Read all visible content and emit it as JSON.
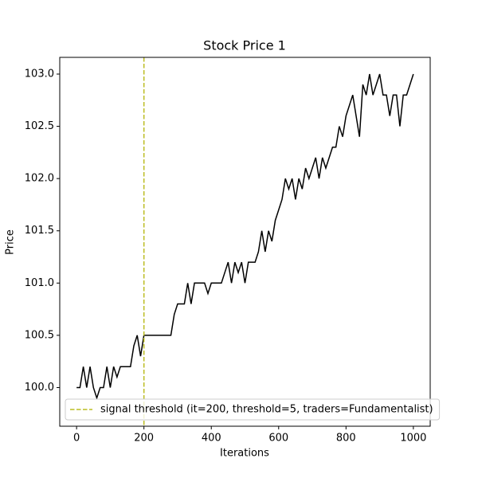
{
  "chart_data": {
    "type": "line",
    "title": "Stock Price 1",
    "x_label": "Iterations",
    "y_label": "Price",
    "x": [
      0,
      10,
      20,
      30,
      40,
      50,
      60,
      70,
      80,
      90,
      100,
      110,
      120,
      130,
      140,
      150,
      160,
      170,
      180,
      190,
      200,
      210,
      220,
      230,
      240,
      250,
      260,
      270,
      280,
      290,
      300,
      310,
      320,
      330,
      340,
      350,
      360,
      370,
      380,
      390,
      400,
      410,
      420,
      430,
      440,
      450,
      460,
      470,
      480,
      490,
      500,
      510,
      520,
      530,
      540,
      550,
      560,
      570,
      580,
      590,
      600,
      610,
      620,
      630,
      640,
      650,
      660,
      670,
      680,
      690,
      700,
      710,
      720,
      730,
      740,
      750,
      760,
      770,
      780,
      790,
      800,
      810,
      820,
      830,
      840,
      850,
      860,
      870,
      880,
      890,
      900,
      910,
      920,
      930,
      940,
      950,
      960,
      970,
      980,
      990,
      1000
    ],
    "series": [
      {
        "name": "Stock Price 1",
        "color": "#000000",
        "values": [
          100.0,
          100.0,
          100.2,
          100.0,
          100.2,
          100.0,
          99.9,
          100.0,
          100.0,
          100.2,
          100.0,
          100.2,
          100.1,
          100.2,
          100.2,
          100.2,
          100.2,
          100.4,
          100.5,
          100.3,
          100.5,
          100.5,
          100.5,
          100.5,
          100.5,
          100.5,
          100.5,
          100.5,
          100.5,
          100.7,
          100.8,
          100.8,
          100.8,
          101.0,
          100.8,
          101.0,
          101.0,
          101.0,
          101.0,
          100.9,
          101.0,
          101.0,
          101.0,
          101.0,
          101.1,
          101.2,
          101.0,
          101.2,
          101.1,
          101.2,
          101.0,
          101.2,
          101.2,
          101.2,
          101.3,
          101.5,
          101.3,
          101.5,
          101.4,
          101.6,
          101.7,
          101.8,
          102.0,
          101.9,
          102.0,
          101.8,
          102.0,
          101.9,
          102.1,
          102.0,
          102.1,
          102.2,
          102.0,
          102.2,
          102.1,
          102.2,
          102.3,
          102.3,
          102.5,
          102.4,
          102.6,
          102.7,
          102.8,
          102.6,
          102.4,
          102.9,
          102.8,
          103.0,
          102.8,
          102.9,
          103.0,
          102.8,
          102.8,
          102.6,
          102.8,
          102.8,
          102.5,
          102.8,
          102.8,
          102.9,
          103.0
        ]
      }
    ],
    "vlines": [
      {
        "x": 200,
        "color": "#bcbd22",
        "label": "signal threshold (it=200, threshold=5, traders=Fundamentalist)"
      }
    ],
    "xlim": [
      -50,
      1050
    ],
    "xticks": [
      0,
      200,
      400,
      600,
      800,
      1000
    ],
    "ylim": [
      99.63,
      103.16
    ],
    "yticks": [
      {
        "value": 100,
        "label": "100.0"
      },
      100.5,
      {
        "value": 101,
        "label": "101.0"
      },
      101.5,
      {
        "value": 102,
        "label": "102.0"
      },
      102.5,
      {
        "value": 103,
        "label": "103.0"
      }
    ],
    "legend": "lower left"
  }
}
